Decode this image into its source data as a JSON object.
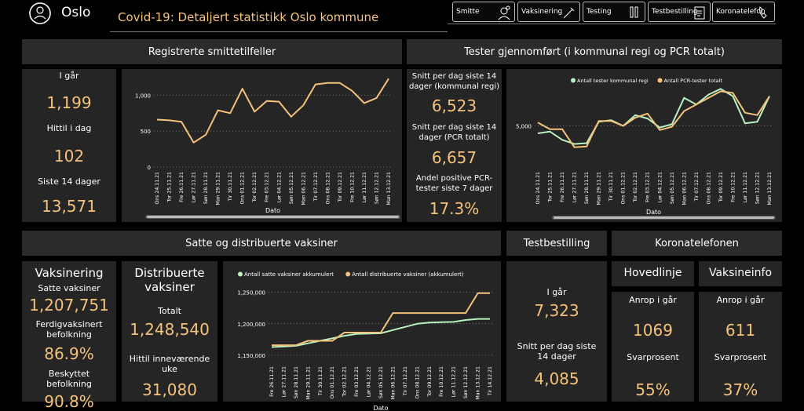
{
  "brand": {
    "name": "Oslo"
  },
  "title": "Covid-19: Detaljert statistikk Oslo kommune",
  "nav": [
    {
      "label": "Smitte",
      "icon": "virus-person-icon"
    },
    {
      "label": "Vaksinering",
      "icon": "syringe-icon"
    },
    {
      "label": "Testing",
      "icon": "test-tubes-icon"
    },
    {
      "label": "Testbestilling",
      "icon": "clipboard-icon"
    },
    {
      "label": "Koronatelefon",
      "icon": "phone-icon"
    }
  ],
  "smitte": {
    "header": "Registrerte smittetilfeller",
    "igar_label": "I går",
    "igar_value": "1,199",
    "hittil_label": "Hittil i dag",
    "hittil_value": "102",
    "siste14_label": "Siste 14 dager",
    "siste14_value": "13,571"
  },
  "tester": {
    "header": "Tester gjennomført (i kommunal regi og PCR totalt)",
    "snitt_kommunal_label": "Snitt per dag siste 14 dager (kommunal regi)",
    "snitt_kommunal_value": "6,523",
    "snitt_pcr_label": "Snitt per dag siste 14 dager (PCR totalt)",
    "snitt_pcr_value": "6,657",
    "andel_label": "Andel positive PCR-tester siste 7 dager",
    "andel_value": "17.3%"
  },
  "vaksiner": {
    "header": "Satte og distribuerte vaksiner",
    "vaksinering_title": "Vaksinering",
    "satte_label": "Satte vaksiner",
    "satte_value": "1,207,751",
    "ferdig_label": "Ferdigvaksinert befolkning",
    "ferdig_value": "86.9%",
    "beskyttet_label": "Beskyttet befolkning",
    "beskyttet_value": "90.8%",
    "distribuerte_title": "Distribuerte vaksiner",
    "totalt_label": "Totalt",
    "totalt_value": "1,248,540",
    "uke_label": "Hittil inneværende uke",
    "uke_value": "31,080"
  },
  "testbestilling": {
    "header": "Testbestilling",
    "igar_label": "I går",
    "igar_value": "7,323",
    "snitt_label": "Snitt per dag siste 14 dager",
    "snitt_value": "4,085"
  },
  "koronatelefon": {
    "header": "Koronatelefonen",
    "hoved_title": "Hovedlinje",
    "hoved_anrop_label": "Anrop i går",
    "hoved_anrop_value": "1069",
    "hoved_svar_label": "Svarprosent",
    "hoved_svar_value": "55%",
    "vaks_title": "Vaksineinfo",
    "vaks_anrop_label": "Anrop i går",
    "vaks_anrop_value": "611",
    "vaks_svar_label": "Svarprosent",
    "vaks_svar_value": "37%"
  },
  "colors": {
    "accent": "#f4c27a",
    "green": "#b9f0c0",
    "panel": "#252525",
    "header": "#2b2b2b"
  },
  "chart_data": [
    {
      "type": "line",
      "xlabel": "Dato",
      "x": [
        "Ons 24.11.21",
        "Tor 25.11.21",
        "Fre 26.11.21",
        "Lør 27.11.21",
        "Søn 28.11.21",
        "Man 29.11.21",
        "Tir 30.11.21",
        "Ons 01.12.21",
        "Tor 02.12.21",
        "Fre 03.12.21",
        "Lør 04.12.21",
        "Søn 05.12.21",
        "Man 06.12.21",
        "Tir 07.12.21",
        "Ons 08.12.21",
        "Tor 09.12.21",
        "Fre 10.12.21",
        "Lør 11.12.21",
        "Søn 12.12.21",
        "Man 13.12.21"
      ],
      "yticks": [
        "0",
        "500",
        "1,000"
      ],
      "ylim": [
        0,
        1200
      ],
      "series": [
        {
          "values": [
            660,
            650,
            630,
            340,
            450,
            790,
            750,
            1090,
            770,
            920,
            910,
            700,
            860,
            1150,
            1170,
            1170,
            1060,
            890,
            960,
            1230
          ]
        }
      ]
    },
    {
      "type": "line",
      "xlabel": "Dato",
      "x": [
        "Ons 24.11.21",
        "Tor 25.11.21",
        "Fre 26.11.21",
        "Lør 27.11.21",
        "Søn 28.11.21",
        "Man 29.11.21",
        "Tir 30.11.21",
        "Ons 01.12.21",
        "Tor 02.12.21",
        "Fre 03.12.21",
        "Lør 04.12.21",
        "Søn 05.12.21",
        "Man 06.12.21",
        "Tir 07.12.21",
        "Ons 08.12.21",
        "Tor 09.12.21",
        "Fre 10.12.21",
        "Lør 11.12.21",
        "Søn 12.12.21",
        "Man 13.12.21"
      ],
      "yticks": [
        "5,000"
      ],
      "ylim": [
        0,
        10000
      ],
      "legend": "top",
      "series": [
        {
          "name": "Antall tester kommunal regi",
          "color": "#b9f0c0",
          "values": [
            4100,
            4300,
            3300,
            2800,
            2900,
            5500,
            5700,
            5000,
            6300,
            5900,
            4800,
            5200,
            8400,
            7600,
            8800,
            9500,
            8600,
            5300,
            5500,
            8600
          ]
        },
        {
          "name": "Antall PCR-tester totalt",
          "color": "#f4c27a",
          "values": [
            5400,
            4600,
            4600,
            2400,
            2500,
            5600,
            5600,
            5000,
            6000,
            6500,
            4500,
            4900,
            6800,
            7600,
            8400,
            9200,
            9000,
            6600,
            6300,
            8600
          ]
        }
      ]
    },
    {
      "type": "line",
      "xlabel": "Dato",
      "x": [
        "Fre 26.11.21",
        "Lør 27.11.21",
        "Søn 28.11.21",
        "Man 29.11.21",
        "Tir 30.11.21",
        "Ons 01.12.21",
        "Tor 02.12.21",
        "Fre 03.12.21",
        "Lør 04.12.21",
        "Søn 05.12.21",
        "Man 06.12.21",
        "Tir 07.12.21",
        "Ons 08.12.21",
        "Tor 09.12.21",
        "Fre 10.12.21",
        "Lør 11.12.21",
        "Søn 12.12.21",
        "Man 13.12.21",
        "Tir 14.12.21"
      ],
      "yticks": [
        "1,150,000",
        "1,200,000",
        "1,250,000"
      ],
      "ylim": [
        1140000,
        1262000
      ],
      "legend": "top",
      "series": [
        {
          "name": "Antall satte vaksiner akkumulert",
          "color": "#b9f0c0",
          "values": [
            1163000,
            1164000,
            1165000,
            1169000,
            1173000,
            1177000,
            1181000,
            1184000,
            1184500,
            1185000,
            1190000,
            1195000,
            1200000,
            1202000,
            1202500,
            1203000,
            1206000,
            1207700,
            1207751
          ]
        },
        {
          "name": "Antall distribuerte vaksiner (akkumulert)",
          "color": "#f4c27a",
          "values": [
            1166000,
            1166000,
            1166000,
            1173000,
            1173000,
            1173000,
            1186000,
            1186000,
            1186000,
            1186000,
            1217000,
            1217000,
            1217000,
            1217000,
            1217000,
            1217000,
            1217000,
            1248540,
            1248540
          ]
        }
      ]
    }
  ]
}
